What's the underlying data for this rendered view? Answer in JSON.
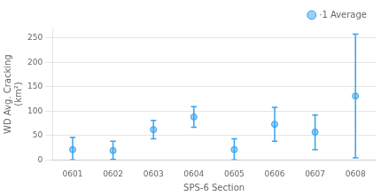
{
  "chart_data": {
    "type": "scatter",
    "xlabel": "SPS-6 Section",
    "ylabel": "WD Avg. Cracking\n(km²)",
    "categories": [
      "0601",
      "0602",
      "0603",
      "0604",
      "0605",
      "0606",
      "0607",
      "0608"
    ],
    "series": [
      {
        "name": "·1 Average",
        "values": [
          21,
          19,
          62,
          88,
          21,
          73,
          57,
          131
        ],
        "upper": [
          46,
          38,
          81,
          109,
          43,
          108,
          92,
          258
        ],
        "lower": [
          0,
          1,
          43,
          67,
          0,
          38,
          21,
          4
        ]
      }
    ],
    "ylim": [
      0,
      270
    ],
    "yticks": [
      0,
      50,
      100,
      150,
      200,
      250
    ],
    "grid": true,
    "legend": "upper right"
  }
}
